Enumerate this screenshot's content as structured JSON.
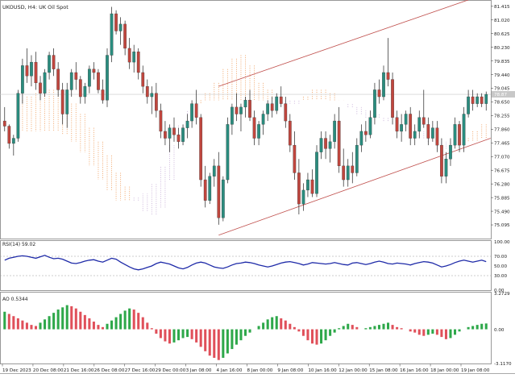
{
  "header": {
    "symbol_line": "UKOUSD, H4:  UK Oil Spot"
  },
  "colors": {
    "bull": "#2a8c7e",
    "bear": "#c0463e",
    "channel": "#c0504d",
    "cloud_orange": "#f0a060",
    "cloud_purple": "#c8b0d8",
    "rsi_line": "#1e2aa8",
    "ao_up": "#2ea84a",
    "ao_down": "#e0505a",
    "grid": "#9a9a9a",
    "text": "#222222"
  },
  "chart_data": [
    {
      "type": "candlestick",
      "name": "UKOUSD",
      "timeframe": "H4",
      "ylim": [
        74.7,
        81.55
      ],
      "price_ticks": [
        "81.415",
        "81.020",
        "80.625",
        "80.230",
        "79.835",
        "79.440",
        "79.045",
        "78.650",
        "78.255",
        "77.860",
        "77.465",
        "77.070",
        "76.675",
        "76.280",
        "75.885",
        "75.490",
        "75.095"
      ],
      "current_price": "78.87",
      "time_labels": [
        "19 Dec 2023",
        "20 Dec 08:00",
        "21 Dec 16:00",
        "26 Dec 08:00",
        "27 Dec 16:00",
        "29 Dec 00:00",
        "3 Jan 08:00",
        "4 Jan 16:00",
        "8 Jan 00:00",
        "9 Jan 08:00",
        "10 Jan 16:00",
        "12 Jan 00:00",
        "15 Jan 08:00",
        "16 Jan 16:00",
        "18 Jan 00:00",
        "19 Jan 08:00"
      ],
      "candles": [
        [
          78.1,
          78.5,
          77.8,
          77.95
        ],
        [
          77.95,
          78.0,
          77.3,
          77.45
        ],
        [
          77.45,
          77.7,
          77.1,
          77.6
        ],
        [
          77.6,
          79.0,
          77.5,
          78.9
        ],
        [
          78.9,
          79.9,
          78.6,
          79.7
        ],
        [
          79.7,
          80.2,
          79.2,
          79.4
        ],
        [
          79.4,
          80.0,
          79.1,
          79.8
        ],
        [
          79.8,
          80.1,
          79.0,
          79.2
        ],
        [
          79.2,
          79.4,
          78.7,
          78.9
        ],
        [
          78.9,
          79.6,
          78.8,
          79.5
        ],
        [
          79.5,
          80.1,
          79.3,
          80.0
        ],
        [
          80.0,
          80.2,
          79.4,
          79.6
        ],
        [
          79.6,
          79.8,
          78.8,
          79.0
        ],
        [
          79.0,
          79.2,
          78.0,
          78.3
        ],
        [
          78.3,
          79.2,
          77.9,
          79.0
        ],
        [
          79.0,
          79.6,
          78.8,
          79.5
        ],
        [
          79.5,
          79.8,
          79.0,
          79.3
        ],
        [
          79.3,
          79.4,
          78.6,
          78.8
        ],
        [
          78.8,
          79.2,
          78.6,
          79.1
        ],
        [
          79.1,
          79.7,
          78.9,
          79.6
        ],
        [
          79.6,
          79.8,
          79.3,
          79.5
        ],
        [
          79.5,
          79.6,
          78.9,
          79.0
        ],
        [
          79.0,
          79.3,
          78.6,
          78.7
        ],
        [
          78.7,
          80.2,
          78.5,
          80.0
        ],
        [
          80.0,
          81.4,
          79.8,
          81.2
        ],
        [
          81.2,
          81.3,
          80.6,
          80.7
        ],
        [
          80.7,
          81.1,
          80.3,
          80.9
        ],
        [
          80.9,
          81.0,
          80.0,
          80.2
        ],
        [
          80.2,
          80.5,
          79.6,
          79.8
        ],
        [
          79.8,
          80.3,
          79.5,
          80.1
        ],
        [
          80.1,
          80.2,
          79.3,
          79.5
        ],
        [
          79.5,
          79.7,
          78.9,
          79.1
        ],
        [
          79.1,
          79.3,
          78.6,
          78.8
        ],
        [
          78.8,
          79.1,
          78.3,
          78.9
        ],
        [
          78.9,
          79.2,
          78.2,
          78.4
        ],
        [
          78.4,
          78.6,
          77.6,
          77.8
        ],
        [
          77.8,
          78.1,
          77.4,
          77.6
        ],
        [
          77.6,
          78.0,
          77.2,
          77.9
        ],
        [
          77.9,
          78.2,
          77.5,
          77.7
        ],
        [
          77.7,
          77.9,
          77.3,
          77.5
        ],
        [
          77.5,
          78.0,
          77.4,
          77.9
        ],
        [
          77.9,
          78.3,
          77.6,
          78.1
        ],
        [
          78.1,
          78.7,
          77.9,
          78.6
        ],
        [
          78.6,
          79.0,
          78.0,
          78.2
        ],
        [
          78.2,
          78.3,
          76.2,
          76.4
        ],
        [
          76.4,
          76.8,
          75.6,
          75.8
        ],
        [
          75.8,
          76.6,
          75.7,
          76.5
        ],
        [
          76.5,
          77.0,
          76.2,
          76.8
        ],
        [
          76.8,
          77.2,
          75.1,
          75.3
        ],
        [
          75.3,
          76.5,
          75.2,
          76.4
        ],
        [
          76.4,
          78.2,
          76.3,
          78.0
        ],
        [
          78.0,
          78.6,
          77.7,
          78.5
        ],
        [
          78.5,
          78.9,
          78.1,
          78.3
        ],
        [
          78.3,
          78.6,
          77.8,
          78.5
        ],
        [
          78.5,
          78.8,
          78.2,
          78.7
        ],
        [
          78.7,
          79.0,
          78.1,
          78.2
        ],
        [
          78.2,
          78.4,
          77.4,
          77.6
        ],
        [
          77.6,
          78.1,
          77.4,
          78.0
        ],
        [
          78.0,
          78.4,
          77.7,
          78.3
        ],
        [
          78.3,
          78.7,
          78.1,
          78.6
        ],
        [
          78.6,
          78.8,
          78.2,
          78.4
        ],
        [
          78.4,
          78.9,
          78.3,
          78.8
        ],
        [
          78.8,
          79.1,
          78.5,
          78.6
        ],
        [
          78.6,
          78.8,
          77.9,
          78.1
        ],
        [
          78.1,
          78.3,
          77.2,
          77.4
        ],
        [
          77.4,
          77.8,
          76.4,
          76.6
        ],
        [
          76.6,
          77.0,
          75.4,
          75.7
        ],
        [
          75.7,
          76.3,
          75.5,
          76.1
        ],
        [
          76.1,
          76.6,
          75.9,
          76.4
        ],
        [
          76.4,
          76.7,
          75.9,
          76.0
        ],
        [
          76.0,
          77.4,
          75.9,
          77.2
        ],
        [
          77.2,
          77.8,
          77.0,
          77.6
        ],
        [
          77.6,
          77.8,
          77.0,
          77.3
        ],
        [
          77.3,
          77.7,
          76.9,
          77.5
        ],
        [
          77.5,
          78.3,
          77.3,
          78.1
        ],
        [
          78.1,
          78.5,
          76.6,
          76.8
        ],
        [
          76.8,
          77.3,
          76.2,
          76.4
        ],
        [
          76.4,
          77.0,
          76.2,
          76.8
        ],
        [
          76.8,
          77.2,
          76.3,
          76.6
        ],
        [
          76.6,
          77.6,
          76.5,
          77.4
        ],
        [
          77.4,
          78.0,
          77.2,
          77.8
        ],
        [
          77.8,
          78.1,
          77.5,
          77.7
        ],
        [
          77.7,
          78.4,
          77.6,
          78.2
        ],
        [
          78.2,
          79.2,
          78.0,
          79.0
        ],
        [
          79.0,
          79.3,
          78.6,
          78.8
        ],
        [
          78.8,
          79.7,
          78.7,
          79.5
        ],
        [
          79.5,
          80.5,
          79.1,
          79.3
        ],
        [
          79.3,
          79.5,
          78.0,
          78.2
        ],
        [
          78.2,
          78.4,
          77.6,
          77.8
        ],
        [
          77.8,
          78.3,
          77.5,
          78.0
        ],
        [
          78.0,
          78.4,
          77.8,
          78.3
        ],
        [
          78.3,
          78.5,
          77.4,
          77.6
        ],
        [
          77.6,
          78.0,
          77.4,
          77.8
        ],
        [
          77.8,
          78.4,
          77.6,
          78.2
        ],
        [
          78.2,
          79.0,
          77.9,
          78.0
        ],
        [
          78.0,
          78.2,
          77.4,
          77.6
        ],
        [
          77.6,
          78.1,
          77.5,
          77.9
        ],
        [
          77.9,
          78.1,
          77.2,
          77.4
        ],
        [
          77.4,
          77.6,
          76.3,
          76.5
        ],
        [
          76.5,
          77.2,
          76.3,
          77.0
        ],
        [
          77.0,
          77.6,
          76.8,
          77.4
        ],
        [
          77.4,
          78.2,
          77.3,
          78.0
        ],
        [
          78.0,
          78.1,
          77.2,
          77.4
        ],
        [
          77.4,
          78.5,
          77.2,
          78.3
        ],
        [
          78.3,
          79.0,
          78.2,
          78.8
        ],
        [
          78.8,
          79.0,
          78.4,
          78.6
        ],
        [
          78.6,
          78.9,
          78.5,
          78.8
        ],
        [
          78.8,
          78.9,
          78.5,
          78.6
        ],
        [
          78.6,
          78.95,
          78.4,
          78.87
        ]
      ],
      "ichimoku_cloud": {
        "senkou_a": [
          78.7,
          78.8,
          78.9,
          79.0,
          79.0,
          78.9,
          78.6,
          78.3,
          77.9,
          77.5,
          77.1,
          76.6,
          76.2,
          75.8,
          75.5,
          75.4,
          75.6,
          76.4,
          77.4,
          78.3,
          78.7,
          78.9,
          79.2,
          79.6,
          79.9,
          80.0,
          79.7,
          79.2,
          79.0,
          78.8,
          78.6,
          78.6,
          78.8,
          79.0,
          79.0,
          78.9,
          78.7,
          78.5,
          78.3,
          78.2,
          78.2,
          78.1,
          78.0,
          77.9,
          77.7,
          77.6,
          77.5,
          77.3,
          77.3,
          77.4,
          77.6,
          77.8,
          78.0,
          78.2,
          78.4,
          78.5
        ],
        "senkou_b": [
          77.8,
          77.8,
          77.8,
          77.8,
          77.8,
          77.7,
          77.5,
          77.2,
          76.8,
          76.4,
          76.1,
          75.8,
          75.8,
          75.9,
          76.0,
          76.3,
          76.8,
          77.4,
          78.0,
          78.4,
          78.6,
          78.7,
          78.7,
          78.7,
          78.7,
          78.7,
          78.7,
          78.7,
          78.7,
          78.7,
          78.7,
          78.7,
          78.7,
          78.7,
          78.7,
          78.7,
          78.7,
          78.6,
          78.5,
          78.4,
          78.3,
          78.2,
          78.1,
          78.0,
          77.9,
          77.8,
          77.7,
          77.6,
          77.5,
          77.5,
          77.5,
          77.5,
          77.6,
          77.7,
          77.8,
          77.9
        ],
        "projection_bars": 6
      },
      "channel": {
        "upper": [
          [
            48,
            79.1
          ],
          [
            104,
            81.6
          ]
        ],
        "lower": [
          [
            48,
            74.8
          ],
          [
            109,
            77.6
          ]
        ]
      }
    },
    {
      "type": "line",
      "name": "RSI(14)",
      "label": "RSI(14) 59.02",
      "ylim": [
        0,
        100
      ],
      "ticks": [
        "100.00",
        "70.00",
        "50.00",
        "30.00",
        "0.00"
      ],
      "levels": [
        70,
        30
      ],
      "values": [
        62,
        66,
        68,
        70,
        71,
        70,
        68,
        66,
        69,
        72,
        68,
        65,
        66,
        64,
        60,
        56,
        55,
        57,
        60,
        62,
        63,
        60,
        58,
        62,
        66,
        64,
        58,
        53,
        48,
        44,
        42,
        44,
        47,
        50,
        55,
        58,
        56,
        54,
        50,
        46,
        44,
        47,
        52,
        56,
        58,
        56,
        52,
        48,
        46,
        45,
        48,
        52,
        55,
        56,
        58,
        57,
        55,
        52,
        50,
        48,
        50,
        53,
        56,
        58,
        59,
        57,
        55,
        52,
        54,
        57,
        56,
        55,
        54,
        55,
        57,
        55,
        53,
        52,
        56,
        57,
        55,
        53,
        55,
        58,
        60,
        58,
        55,
        54,
        56,
        55,
        54,
        52,
        55,
        57,
        59,
        58,
        56,
        52,
        48,
        50,
        53,
        57,
        60,
        62,
        60,
        58,
        60,
        62,
        59.02
      ]
    },
    {
      "type": "bar",
      "name": "AO",
      "label": "AO 0.5344",
      "ylim": [
        -3.117,
        3.2729
      ],
      "ticks": [
        "3.2729",
        "0.00",
        "-3.1170"
      ],
      "values": [
        1.6,
        1.4,
        1.2,
        1.0,
        0.8,
        0.6,
        0.4,
        0.3,
        0.6,
        0.9,
        1.2,
        1.5,
        1.8,
        2.0,
        2.2,
        2.1,
        1.9,
        1.6,
        1.3,
        1.0,
        0.7,
        0.4,
        0.2,
        0.5,
        0.8,
        1.1,
        1.4,
        1.7,
        1.9,
        1.8,
        1.5,
        1.1,
        0.6,
        0.1,
        -0.4,
        -0.8,
        -1.1,
        -1.3,
        -1.2,
        -1.0,
        -0.8,
        -0.7,
        -0.9,
        -1.2,
        -1.6,
        -2.0,
        -2.4,
        -2.6,
        -2.8,
        -2.6,
        -2.2,
        -1.8,
        -1.4,
        -1.0,
        -0.6,
        -0.3,
        0.0,
        0.3,
        0.6,
        0.9,
        1.1,
        1.2,
        1.0,
        0.8,
        0.5,
        0.2,
        -0.2,
        -0.6,
        -1.0,
        -1.3,
        -1.4,
        -1.3,
        -1.0,
        -0.6,
        -0.3,
        0.1,
        0.3,
        0.5,
        0.4,
        0.2,
        0.0,
        0.1,
        0.2,
        0.3,
        0.4,
        0.5,
        0.6,
        0.4,
        0.2,
        0.1,
        0.0,
        -0.2,
        -0.3,
        -0.5,
        -0.6,
        -0.5,
        -0.4,
        -0.5,
        -0.7,
        -0.9,
        -0.8,
        -0.5,
        -0.2,
        0.0,
        0.2,
        0.3,
        0.4,
        0.5,
        0.53
      ]
    }
  ]
}
